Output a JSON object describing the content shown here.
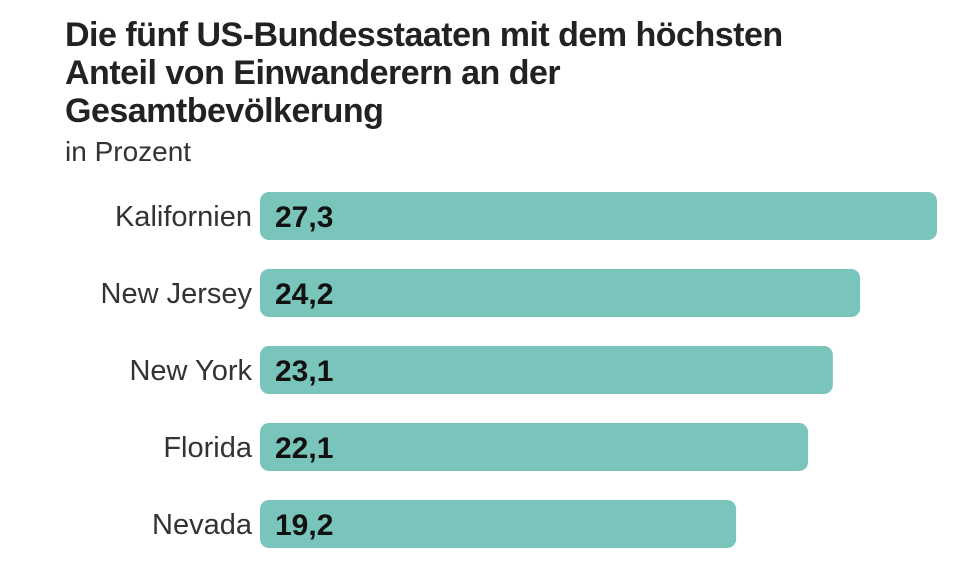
{
  "chart_data": {
    "type": "bar",
    "orientation": "horizontal",
    "title": "Die fünf US-Bundesstaaten mit dem höchsten Anteil von Einwanderern an der Gesamtbevölkerung",
    "subtitle": "in Prozent",
    "categories": [
      "Kalifornien",
      "New Jersey",
      "New York",
      "Florida",
      "Nevada"
    ],
    "values": [
      27.3,
      24.2,
      23.1,
      22.1,
      19.2
    ],
    "value_labels": [
      "27,3",
      "24,2",
      "23,1",
      "22,1",
      "19,2"
    ],
    "xlim": [
      0,
      27.3
    ],
    "grid": false,
    "bar_color": "#7ac5bb"
  }
}
